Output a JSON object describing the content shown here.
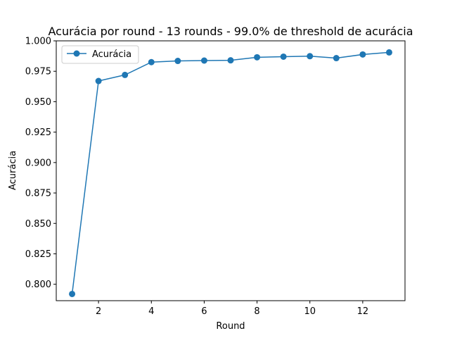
{
  "chart_data": {
    "type": "line",
    "title": "Acurácia por round - 13 rounds - 99.0% de threshold de acurácia",
    "xlabel": "Round",
    "ylabel": "Acurácia",
    "x": [
      1,
      2,
      3,
      4,
      5,
      6,
      7,
      8,
      9,
      10,
      11,
      12,
      13
    ],
    "series": [
      {
        "name": "Acurácia",
        "color": "#1f77b4",
        "marker": "circle",
        "values": [
          0.792,
          0.967,
          0.972,
          0.9825,
          0.9835,
          0.9838,
          0.984,
          0.9865,
          0.987,
          0.9874,
          0.9858,
          0.9888,
          0.9905
        ]
      }
    ],
    "xlim": [
      0.4,
      13.6
    ],
    "ylim": [
      0.7865,
      1.0
    ],
    "xticks": [
      2,
      4,
      6,
      8,
      10,
      12
    ],
    "yticks": [
      0.8,
      0.825,
      0.85,
      0.875,
      0.9,
      0.925,
      0.95,
      0.975,
      1.0
    ],
    "grid": false,
    "legend_position": "upper-left"
  }
}
